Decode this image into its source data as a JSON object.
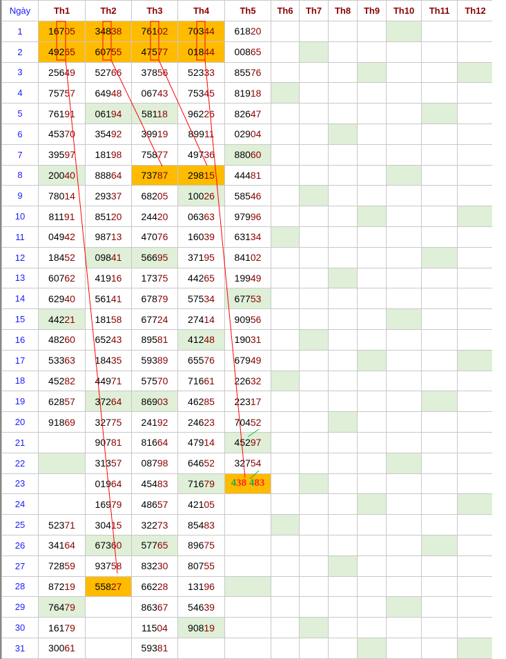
{
  "headers": [
    "Ngày",
    "Th1",
    "Th2",
    "Th3",
    "Th4",
    "Th5",
    "Th6",
    "Th7",
    "Th8",
    "Th9",
    "Th10",
    "Th11",
    "Th12"
  ],
  "colors": {
    "highlight": "#ffbb00",
    "sunday": "#dfefd8",
    "tail_digits": "#8b0000",
    "day": "#1a1aff",
    "line": "#ff0000",
    "hint_line": "#22aa44"
  },
  "rows": [
    [
      "16705",
      "34838",
      "76102",
      "70344",
      "61820"
    ],
    [
      "49265",
      "60755",
      "47577",
      "01844",
      "00865"
    ],
    [
      "25649",
      "52766",
      "37856",
      "52333",
      "85576"
    ],
    [
      "75757",
      "64948",
      "06743",
      "75345",
      "81918"
    ],
    [
      "76191",
      "06194",
      "58118",
      "96226",
      "82647"
    ],
    [
      "45370",
      "35492",
      "39919",
      "89911",
      "02904"
    ],
    [
      "39597",
      "18198",
      "75877",
      "49736",
      "88060"
    ],
    [
      "20040",
      "88864",
      "73787",
      "29815",
      "44481"
    ],
    [
      "78014",
      "29337",
      "68205",
      "10026",
      "58546"
    ],
    [
      "81191",
      "85120",
      "24420",
      "06363",
      "97996"
    ],
    [
      "04942",
      "98713",
      "47076",
      "16039",
      "63134"
    ],
    [
      "18452",
      "09841",
      "56695",
      "37195",
      "84102"
    ],
    [
      "60762",
      "41916",
      "17375",
      "44265",
      "19949"
    ],
    [
      "62940",
      "56141",
      "67879",
      "57534",
      "67753"
    ],
    [
      "44221",
      "18158",
      "67724",
      "27414",
      "90956"
    ],
    [
      "48260",
      "65243",
      "89581",
      "41248",
      "19031"
    ],
    [
      "53363",
      "18435",
      "59389",
      "65576",
      "67949"
    ],
    [
      "45282",
      "44971",
      "57570",
      "71661",
      "22632"
    ],
    [
      "62857",
      "37264",
      "86903",
      "46285",
      "22317"
    ],
    [
      "91869",
      "32775",
      "24192",
      "24623",
      "70452"
    ],
    [
      "",
      "90781",
      "81664",
      "47914",
      "45297"
    ],
    [
      "",
      "31357",
      "08798",
      "64652",
      "32754"
    ],
    [
      "",
      "01964",
      "45483",
      "71679",
      "438 483"
    ],
    [
      "",
      "16979",
      "48657",
      "42105",
      ""
    ],
    [
      "52371",
      "30415",
      "32273",
      "85483",
      ""
    ],
    [
      "34164",
      "67360",
      "57765",
      "89675",
      ""
    ],
    [
      "72859",
      "93758",
      "83230",
      "80755",
      ""
    ],
    [
      "87219",
      "55827",
      "66228",
      "13196",
      ""
    ],
    [
      "76479",
      "",
      "86367",
      "54639",
      ""
    ],
    [
      "16179",
      "",
      "11504",
      "90819",
      ""
    ],
    [
      "30061",
      "",
      "59381",
      "",
      ""
    ]
  ],
  "highlighted_cells": [
    [
      1,
      1
    ],
    [
      1,
      2
    ],
    [
      1,
      3
    ],
    [
      1,
      4
    ],
    [
      2,
      1
    ],
    [
      2,
      2
    ],
    [
      2,
      3
    ],
    [
      2,
      4
    ],
    [
      8,
      3
    ],
    [
      8,
      4
    ],
    [
      23,
      5
    ],
    [
      28,
      2
    ]
  ]
}
